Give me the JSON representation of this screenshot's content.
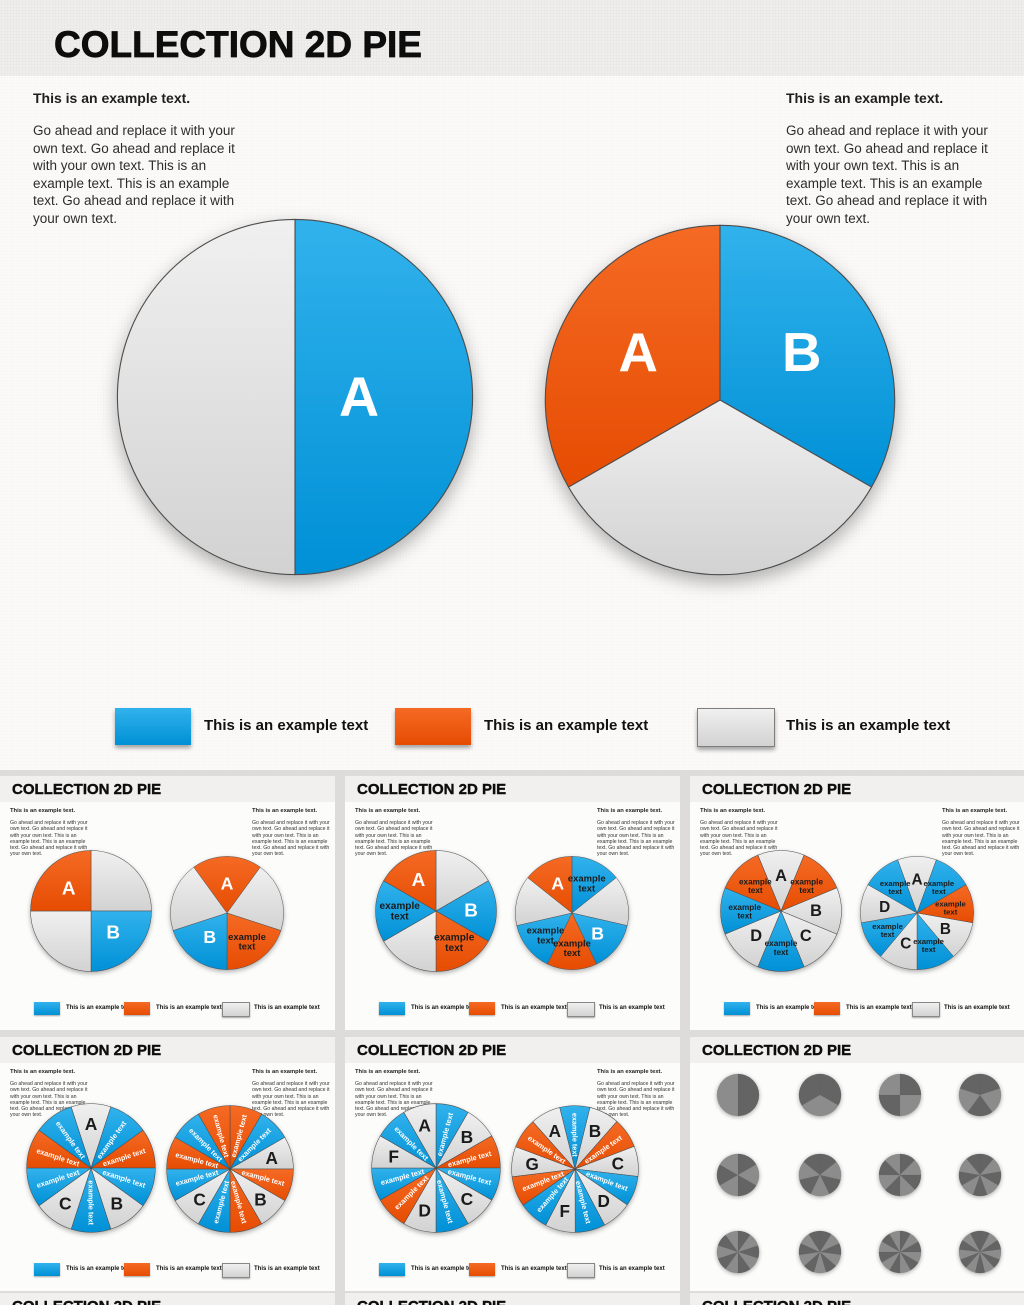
{
  "slide": {
    "title": "COLLECTION 2D PIE",
    "text_heading": "This is an example text.",
    "text_body": "Go ahead and replace it with your own text. Go ahead and replace it with your own text. This is an example text. This is an example text. Go ahead and replace it with your own text.",
    "legend_label": "This is an example text"
  },
  "colors": {
    "blue": "#09a1e8",
    "blue_light": "#31b2ec",
    "blue_dark": "#0090d6",
    "orange": "#f0520d",
    "orange_light": "#f56a24",
    "orange_dark": "#e64c02",
    "gray": "#e3e3e3",
    "gray_light": "#f0f0f0",
    "gray_dark": "#d2d2d2",
    "slice_stroke": "#4d4d4d",
    "mini_gray_dark": "#646464",
    "mini_gray_light": "#8c8c8c"
  },
  "legend": {
    "items": [
      {
        "color_key": "blue",
        "label": "This is an example text"
      },
      {
        "color_key": "orange",
        "label": "This is an example text"
      },
      {
        "color_key": "gray",
        "label": "This is an example text"
      }
    ]
  },
  "chart_data": {
    "type": "pie-collection",
    "main_pies": [
      {
        "name": "two-segment-pie",
        "start": 0,
        "slices": [
          {
            "c": "blue",
            "l": "A",
            "value": 50
          },
          {
            "c": "gray",
            "l": "",
            "value": 50
          }
        ]
      },
      {
        "name": "three-segment-pie",
        "start": 0,
        "slices": [
          {
            "c": "blue",
            "l": "B",
            "value": 33.3
          },
          {
            "c": "gray",
            "l": "",
            "value": 33.4
          },
          {
            "c": "orange",
            "l": "A",
            "value": 33.3
          }
        ]
      }
    ],
    "thumbnails": [
      {
        "pies": [
          {
            "start": 0,
            "mode": "block",
            "slices": [
              {
                "c": "gray"
              },
              {
                "c": "blue",
                "l": "B"
              },
              {
                "c": "gray"
              },
              {
                "c": "orange",
                "l": "A"
              }
            ]
          },
          {
            "start": -36,
            "mode": "block",
            "slices": [
              {
                "c": "orange",
                "l": "A"
              },
              {
                "c": "gray"
              },
              {
                "c": "orange",
                "l": "example text"
              },
              {
                "c": "blue",
                "l": "B"
              },
              {
                "c": "gray"
              }
            ]
          }
        ]
      },
      {
        "pies": [
          {
            "start": 0,
            "mode": "block",
            "slices": [
              {
                "c": "gray"
              },
              {
                "c": "blue",
                "l": "B"
              },
              {
                "c": "orange",
                "l": "example text"
              },
              {
                "c": "gray"
              },
              {
                "c": "blue",
                "l": "example text"
              },
              {
                "c": "orange",
                "l": "A"
              }
            ]
          },
          {
            "start": 0,
            "mode": "block",
            "slices": [
              {
                "c": "blue",
                "l": "example text"
              },
              {
                "c": "gray"
              },
              {
                "c": "blue",
                "l": "B"
              },
              {
                "c": "orange",
                "l": "example text"
              },
              {
                "c": "blue",
                "l": "example text"
              },
              {
                "c": "gray"
              },
              {
                "c": "orange",
                "l": "A"
              }
            ]
          }
        ]
      },
      {
        "pies": [
          {
            "start": -22.5,
            "mode": "block",
            "slices": [
              {
                "c": "gray",
                "l": "A"
              },
              {
                "c": "orange",
                "l": "example text"
              },
              {
                "c": "gray",
                "l": "B"
              },
              {
                "c": "gray",
                "l": "C"
              },
              {
                "c": "blue",
                "l": "example text"
              },
              {
                "c": "gray",
                "l": "D"
              },
              {
                "c": "blue",
                "l": "example text"
              },
              {
                "c": "orange",
                "l": "example text"
              }
            ]
          },
          {
            "start": -20,
            "mode": "block",
            "slices": [
              {
                "c": "gray",
                "l": "A"
              },
              {
                "c": "blue",
                "l": "example text"
              },
              {
                "c": "orange",
                "l": "example text"
              },
              {
                "c": "gray",
                "l": "B"
              },
              {
                "c": "blue",
                "l": "example text"
              },
              {
                "c": "gray",
                "l": "C"
              },
              {
                "c": "blue",
                "l": "example text"
              },
              {
                "c": "gray",
                "l": "D"
              },
              {
                "c": "blue",
                "l": "example text"
              }
            ]
          }
        ]
      },
      {
        "pies": [
          {
            "start": -18,
            "mode": "radial",
            "slices": [
              {
                "c": "gray",
                "l": "A"
              },
              {
                "c": "blue",
                "l": "example text"
              },
              {
                "c": "orange",
                "l": "example text"
              },
              {
                "c": "blue",
                "l": "example text"
              },
              {
                "c": "gray",
                "l": "B"
              },
              {
                "c": "blue",
                "l": "example text"
              },
              {
                "c": "gray",
                "l": "C"
              },
              {
                "c": "blue",
                "l": "example text"
              },
              {
                "c": "orange",
                "l": "example text"
              },
              {
                "c": "blue",
                "l": "example text"
              }
            ]
          },
          {
            "start": 0,
            "mode": "radial",
            "slices": [
              {
                "c": "orange",
                "l": "example text"
              },
              {
                "c": "blue",
                "l": "example text"
              },
              {
                "c": "gray",
                "l": "A"
              },
              {
                "c": "orange",
                "l": "example text"
              },
              {
                "c": "gray",
                "l": "B"
              },
              {
                "c": "orange",
                "l": "example text"
              },
              {
                "c": "blue",
                "l": "example text"
              },
              {
                "c": "gray",
                "l": "C"
              },
              {
                "c": "blue",
                "l": "example text"
              },
              {
                "c": "orange",
                "l": "example text"
              },
              {
                "c": "blue",
                "l": "example text"
              },
              {
                "c": "orange",
                "l": "example text"
              }
            ]
          }
        ]
      },
      {
        "pies": [
          {
            "start": 0,
            "mode": "radial",
            "slices": [
              {
                "c": "blue",
                "l": "example text"
              },
              {
                "c": "gray",
                "l": "B"
              },
              {
                "c": "orange",
                "l": "example text"
              },
              {
                "c": "blue",
                "l": "example text"
              },
              {
                "c": "gray",
                "l": "C"
              },
              {
                "c": "blue",
                "l": "example text"
              },
              {
                "c": "gray",
                "l": "D"
              },
              {
                "c": "orange",
                "l": "example text"
              },
              {
                "c": "blue",
                "l": "example text"
              },
              {
                "c": "gray",
                "l": "F"
              },
              {
                "c": "blue",
                "l": "example text"
              },
              {
                "c": "gray",
                "l": "A"
              }
            ]
          },
          {
            "start": -14,
            "mode": "radial",
            "slices": [
              {
                "c": "blue",
                "l": "example text"
              },
              {
                "c": "gray",
                "l": "B"
              },
              {
                "c": "orange",
                "l": "example text"
              },
              {
                "c": "gray",
                "l": "C"
              },
              {
                "c": "blue",
                "l": "example text"
              },
              {
                "c": "gray",
                "l": "D"
              },
              {
                "c": "blue",
                "l": "example text"
              },
              {
                "c": "gray",
                "l": "F"
              },
              {
                "c": "blue",
                "l": "example text"
              },
              {
                "c": "orange",
                "l": "example text"
              },
              {
                "c": "gray",
                "l": "G"
              },
              {
                "c": "orange",
                "l": "example text"
              },
              {
                "c": "gray",
                "l": "A"
              }
            ]
          }
        ]
      },
      {
        "gray_counts": [
          2,
          3,
          4,
          5,
          6,
          7,
          8,
          9,
          10,
          11,
          12,
          13
        ]
      }
    ]
  }
}
